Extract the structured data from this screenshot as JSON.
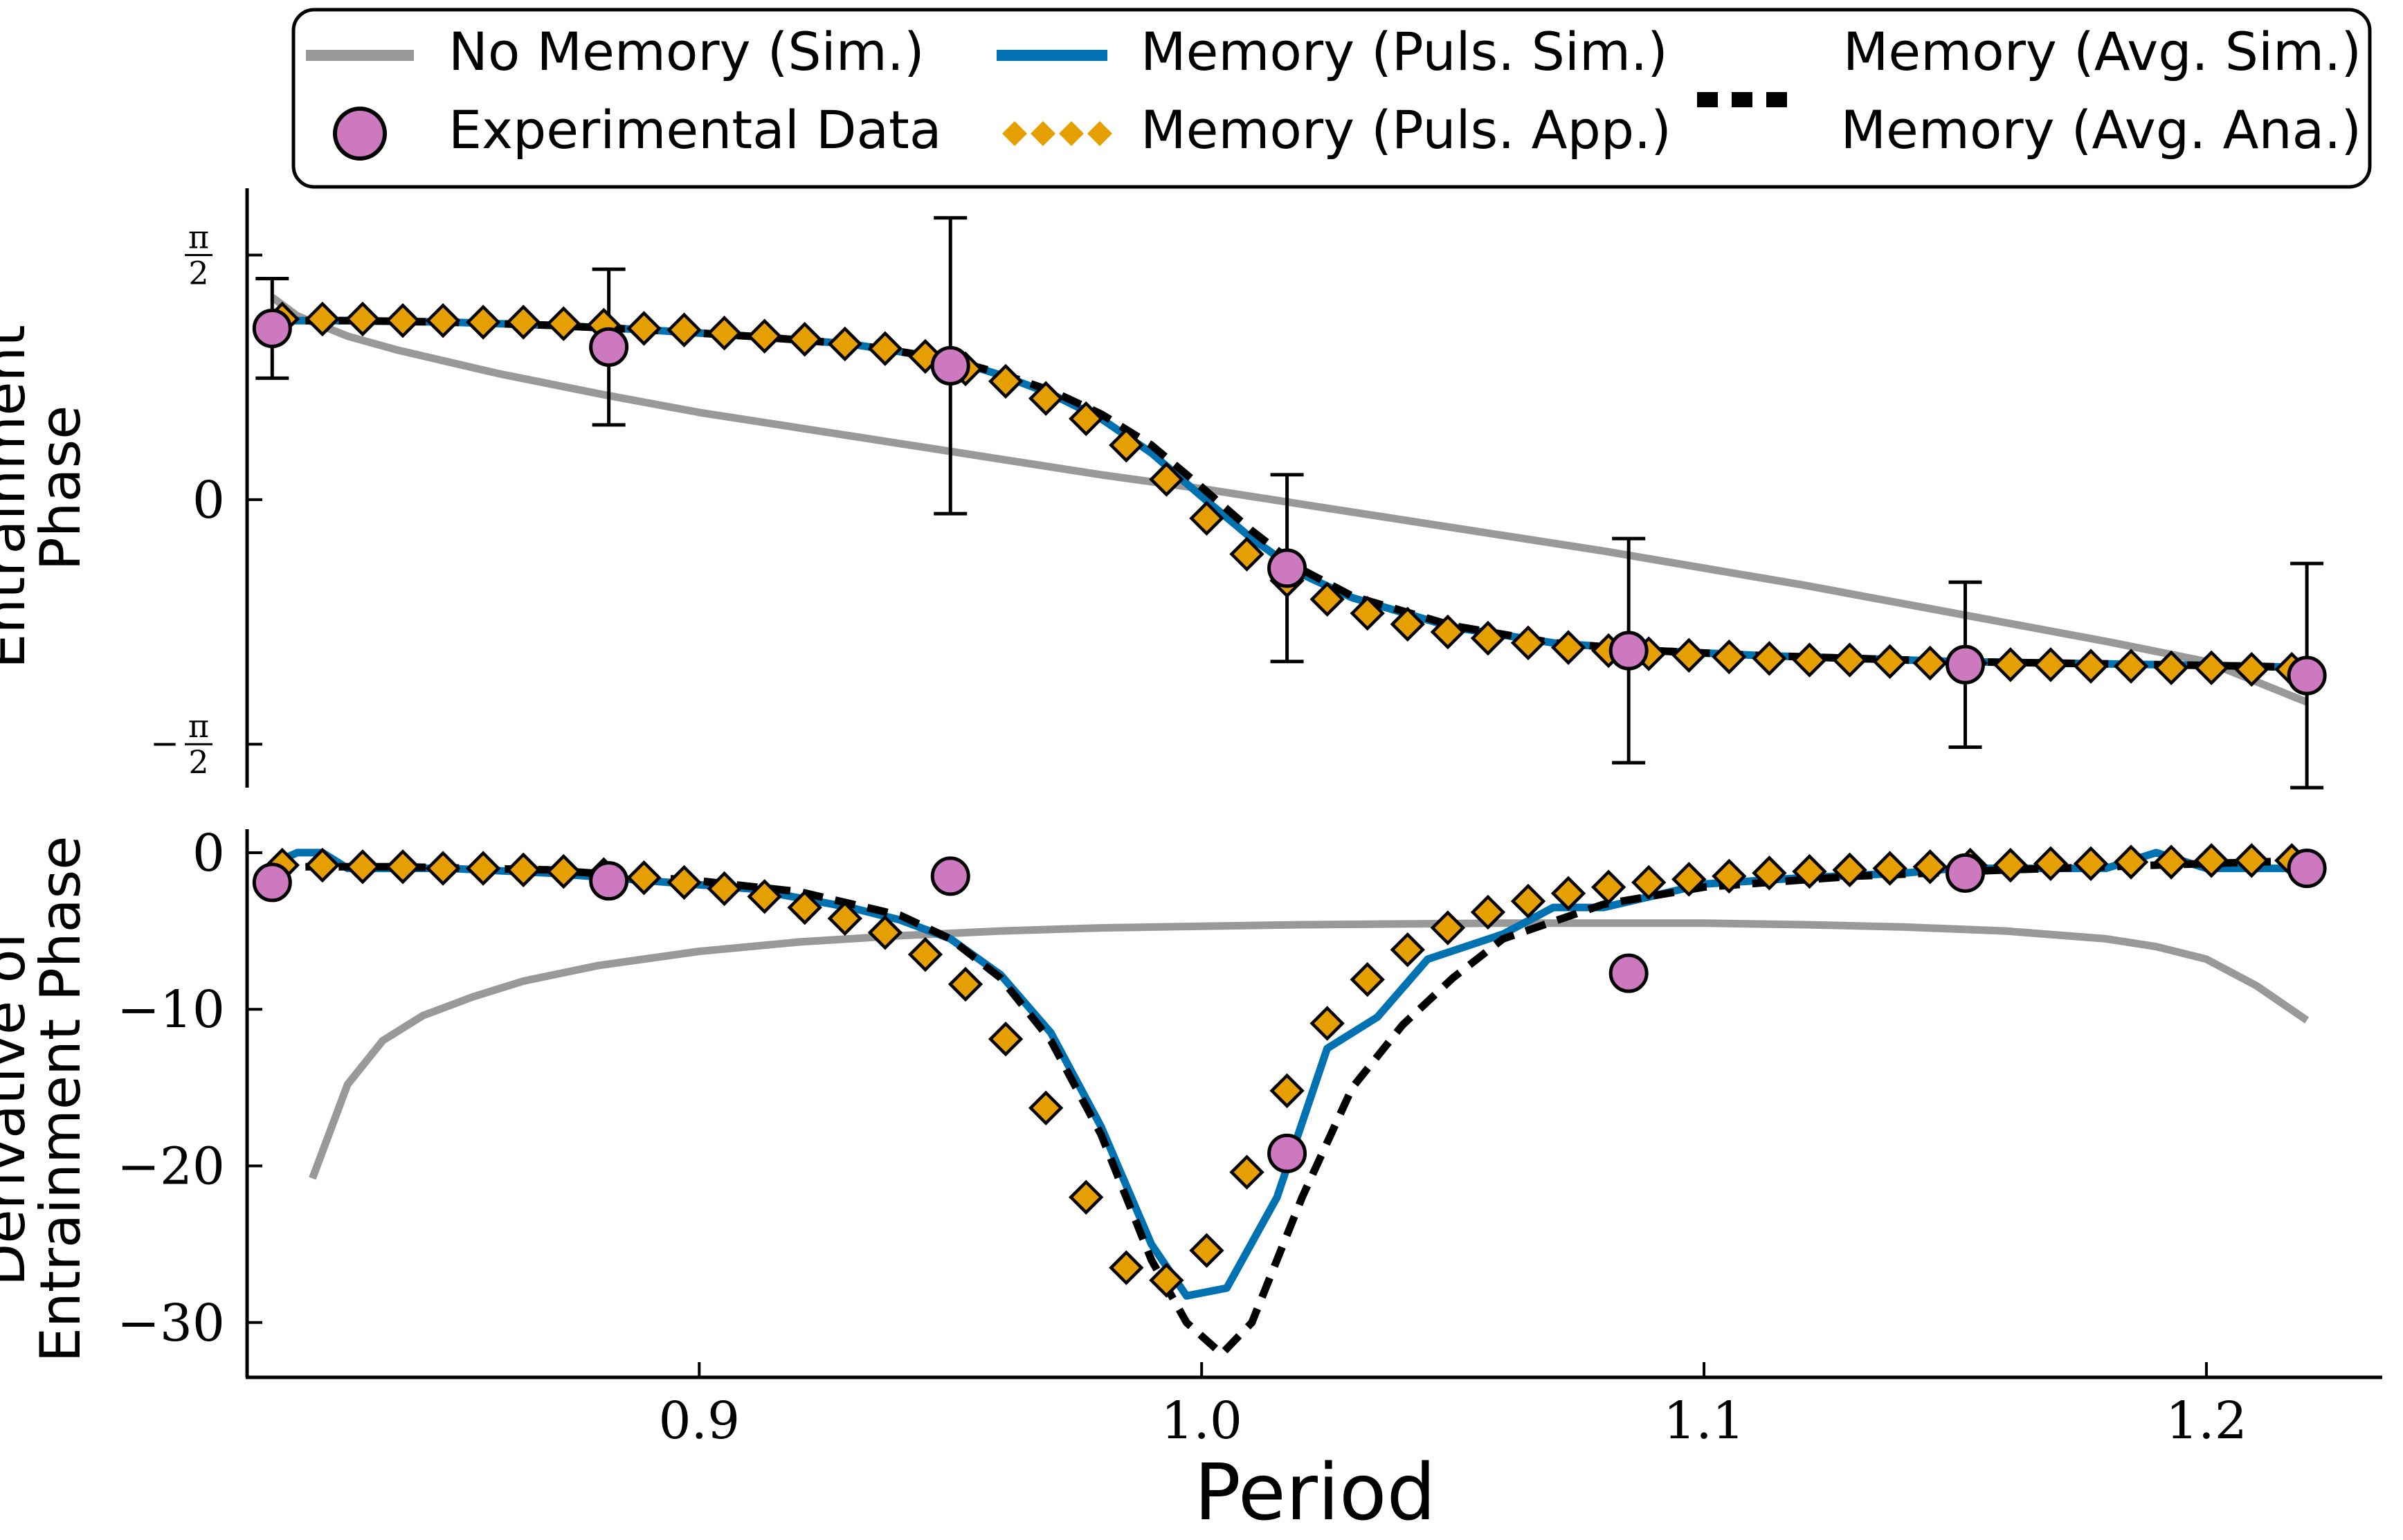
{
  "figure": {
    "xlabel": "Period"
  },
  "legend": {
    "entries": [
      {
        "label": "No Memory (Sim.)",
        "style": "line",
        "color": "#999999"
      },
      {
        "label": "Memory (Puls. Sim.)",
        "style": "line",
        "color": "#0072B2"
      },
      {
        "label": "Memory (Avg. Sim.)",
        "style": "dashed",
        "color": "#000000"
      },
      {
        "label": "Experimental Data",
        "style": "circle",
        "color": "#CC79C0"
      },
      {
        "label": "Memory (Puls. App.)",
        "style": "diamond",
        "color": "#E69F00"
      },
      {
        "label": "Memory (Avg. Ana.)",
        "style": "none",
        "color": "#000000"
      }
    ]
  },
  "colors": {
    "no_memory": "#999999",
    "puls_sim": "#0072B2",
    "avg": "#000000",
    "experimental": "#CC79C0",
    "puls_app": "#E69F00"
  },
  "chart_data": [
    {
      "type": "line",
      "panel": "top",
      "ylabel_lines": [
        "Entrainment",
        "Phase"
      ],
      "xlim": [
        0.81,
        1.235
      ],
      "ylim": [
        -1.85,
        2.0
      ],
      "yticks": [
        {
          "value": 1.5708,
          "num": "π",
          "den": "2",
          "sign": ""
        },
        {
          "value": 0,
          "label": "0"
        },
        {
          "value": -1.5708,
          "num": "π",
          "den": "2",
          "sign": "−"
        }
      ],
      "series": [
        {
          "name": "No Memory (Sim.)",
          "style": "no_memory",
          "x": [
            0.815,
            0.82,
            0.83,
            0.84,
            0.86,
            0.88,
            0.9,
            0.92,
            0.94,
            0.96,
            0.98,
            1.0,
            1.02,
            1.04,
            1.06,
            1.08,
            1.1,
            1.12,
            1.14,
            1.16,
            1.18,
            1.2,
            1.22
          ],
          "y": [
            1.3,
            1.18,
            1.05,
            0.96,
            0.81,
            0.68,
            0.56,
            0.46,
            0.36,
            0.26,
            0.16,
            0.07,
            -0.03,
            -0.13,
            -0.23,
            -0.33,
            -0.44,
            -0.55,
            -0.67,
            -0.79,
            -0.91,
            -1.04,
            -1.3
          ]
        },
        {
          "name": "Memory (Puls. Sim.)",
          "style": "puls_sim",
          "x": [
            0.815,
            0.83,
            0.85,
            0.87,
            0.89,
            0.91,
            0.93,
            0.95,
            0.96,
            0.97,
            0.98,
            0.99,
            1.0,
            1.01,
            1.02,
            1.03,
            1.05,
            1.07,
            1.09,
            1.11,
            1.13,
            1.15,
            1.17,
            1.19,
            1.21,
            1.22
          ],
          "y": [
            1.15,
            1.15,
            1.14,
            1.12,
            1.09,
            1.05,
            1.0,
            0.9,
            0.8,
            0.68,
            0.52,
            0.3,
            0.02,
            -0.25,
            -0.48,
            -0.63,
            -0.82,
            -0.92,
            -0.97,
            -1.0,
            -1.02,
            -1.04,
            -1.05,
            -1.06,
            -1.07,
            -1.08
          ]
        },
        {
          "name": "Memory (Avg. Sim.)",
          "style": "avg",
          "x": [
            0.815,
            0.83,
            0.85,
            0.87,
            0.89,
            0.91,
            0.93,
            0.95,
            0.96,
            0.97,
            0.98,
            0.99,
            1.0,
            1.01,
            1.02,
            1.03,
            1.05,
            1.07,
            1.09,
            1.11,
            1.13,
            1.15,
            1.17,
            1.19,
            1.21,
            1.22
          ],
          "y": [
            1.15,
            1.15,
            1.14,
            1.12,
            1.09,
            1.05,
            1.0,
            0.9,
            0.81,
            0.7,
            0.55,
            0.35,
            0.08,
            -0.2,
            -0.45,
            -0.62,
            -0.81,
            -0.92,
            -0.97,
            -1.0,
            -1.02,
            -1.04,
            -1.05,
            -1.06,
            -1.07,
            -1.08
          ]
        },
        {
          "name": "Memory (Puls. App.)",
          "style": "puls_app",
          "x": [
            0.817,
            0.825,
            0.833,
            0.841,
            0.849,
            0.857,
            0.865,
            0.873,
            0.881,
            0.889,
            0.897,
            0.905,
            0.913,
            0.921,
            0.929,
            0.937,
            0.945,
            0.953,
            0.961,
            0.969,
            0.977,
            0.985,
            0.993,
            1.001,
            1.009,
            1.017,
            1.025,
            1.033,
            1.041,
            1.049,
            1.057,
            1.065,
            1.073,
            1.081,
            1.089,
            1.097,
            1.105,
            1.113,
            1.121,
            1.129,
            1.137,
            1.145,
            1.153,
            1.161,
            1.169,
            1.177,
            1.185,
            1.193,
            1.201,
            1.209,
            1.217
          ],
          "y": [
            1.16,
            1.16,
            1.16,
            1.15,
            1.15,
            1.14,
            1.14,
            1.13,
            1.12,
            1.1,
            1.09,
            1.07,
            1.05,
            1.03,
            1.0,
            0.97,
            0.92,
            0.84,
            0.76,
            0.65,
            0.52,
            0.35,
            0.13,
            -0.12,
            -0.35,
            -0.52,
            -0.64,
            -0.73,
            -0.8,
            -0.85,
            -0.89,
            -0.92,
            -0.95,
            -0.97,
            -0.99,
            -1.0,
            -1.01,
            -1.02,
            -1.03,
            -1.03,
            -1.04,
            -1.05,
            -1.05,
            -1.06,
            -1.06,
            -1.07,
            -1.07,
            -1.08,
            -1.08,
            -1.09,
            -1.09
          ]
        },
        {
          "name": "Experimental Data",
          "style": "experimental",
          "x": [
            0.815,
            0.882,
            0.95,
            1.017,
            1.085,
            1.152,
            1.22
          ],
          "y": [
            1.1,
            0.98,
            0.86,
            -0.44,
            -0.97,
            -1.06,
            -1.13
          ],
          "err": [
            0.32,
            0.5,
            0.95,
            0.6,
            0.72,
            0.53,
            0.72
          ]
        }
      ]
    },
    {
      "type": "line",
      "panel": "bottom",
      "ylabel_lines": [
        "Derivative of",
        "Entrainment Phase"
      ],
      "xlim": [
        0.81,
        1.235
      ],
      "ylim": [
        -33.5,
        1.5
      ],
      "yticks": [
        {
          "value": 0,
          "label": "0"
        },
        {
          "value": -10,
          "label": "−10"
        },
        {
          "value": -20,
          "label": "−20"
        },
        {
          "value": -30,
          "label": "−30"
        }
      ],
      "xticks": [
        {
          "value": 0.9,
          "label": "0.9"
        },
        {
          "value": 1.0,
          "label": "1.0"
        },
        {
          "value": 1.1,
          "label": "1.1"
        },
        {
          "value": 1.2,
          "label": "1.2"
        }
      ],
      "series": [
        {
          "name": "No Memory (Sim.)",
          "style": "no_memory",
          "x": [
            0.823,
            0.83,
            0.837,
            0.845,
            0.855,
            0.865,
            0.88,
            0.9,
            0.92,
            0.94,
            0.96,
            0.98,
            1.0,
            1.02,
            1.04,
            1.06,
            1.08,
            1.1,
            1.12,
            1.14,
            1.16,
            1.18,
            1.19,
            1.2,
            1.21,
            1.22
          ],
          "y": [
            -20.8,
            -14.8,
            -12.0,
            -10.4,
            -9.2,
            -8.2,
            -7.2,
            -6.3,
            -5.7,
            -5.3,
            -5.0,
            -4.8,
            -4.7,
            -4.6,
            -4.55,
            -4.5,
            -4.5,
            -4.5,
            -4.6,
            -4.75,
            -5.0,
            -5.5,
            -6.0,
            -6.8,
            -8.5,
            -10.7
          ]
        },
        {
          "name": "Memory (Puls. Sim.)",
          "style": "puls_sim",
          "x": [
            0.815,
            0.82,
            0.825,
            0.83,
            0.85,
            0.87,
            0.89,
            0.91,
            0.93,
            0.94,
            0.95,
            0.96,
            0.97,
            0.98,
            0.99,
            0.997,
            1.005,
            1.015,
            1.025,
            1.035,
            1.045,
            1.06,
            1.07,
            1.08,
            1.1,
            1.12,
            1.14,
            1.15,
            1.17,
            1.18,
            1.19,
            1.2,
            1.21,
            1.22
          ],
          "y": [
            -0.7,
            0.0,
            0.0,
            -1.0,
            -1.0,
            -1.3,
            -1.8,
            -2.3,
            -3.5,
            -4.3,
            -5.5,
            -7.8,
            -11.5,
            -17.5,
            -25.0,
            -28.3,
            -27.8,
            -22.0,
            -12.5,
            -10.5,
            -6.8,
            -5.2,
            -3.5,
            -3.5,
            -2.0,
            -1.6,
            -1.3,
            -1.0,
            -1.0,
            -1.0,
            0.0,
            -1.0,
            -1.0,
            -1.0
          ]
        },
        {
          "name": "Memory (Avg. Sim.)",
          "style": "avg",
          "x": [
            0.815,
            0.84,
            0.87,
            0.9,
            0.92,
            0.94,
            0.95,
            0.96,
            0.97,
            0.98,
            0.99,
            0.997,
            1.004,
            1.01,
            1.02,
            1.03,
            1.04,
            1.05,
            1.06,
            1.08,
            1.1,
            1.13,
            1.16,
            1.19,
            1.22
          ],
          "y": [
            -0.9,
            -0.9,
            -1.1,
            -1.8,
            -2.5,
            -4.0,
            -5.5,
            -8.0,
            -12.0,
            -18.0,
            -26.0,
            -30.0,
            -32.0,
            -30.0,
            -22.0,
            -15.0,
            -11.0,
            -8.0,
            -5.5,
            -3.3,
            -2.2,
            -1.5,
            -1.1,
            -0.8,
            -0.5
          ]
        },
        {
          "name": "Memory (Puls. App.)",
          "style": "puls_app",
          "x": [
            0.817,
            0.825,
            0.833,
            0.841,
            0.849,
            0.857,
            0.865,
            0.873,
            0.881,
            0.889,
            0.897,
            0.905,
            0.913,
            0.921,
            0.929,
            0.937,
            0.945,
            0.953,
            0.961,
            0.969,
            0.977,
            0.985,
            0.993,
            1.001,
            1.009,
            1.017,
            1.025,
            1.033,
            1.041,
            1.049,
            1.057,
            1.065,
            1.073,
            1.081,
            1.089,
            1.097,
            1.105,
            1.113,
            1.121,
            1.129,
            1.137,
            1.145,
            1.153,
            1.161,
            1.169,
            1.177,
            1.185,
            1.193,
            1.201,
            1.209,
            1.217
          ],
          "y": [
            -0.8,
            -0.8,
            -0.9,
            -0.9,
            -1.0,
            -1.0,
            -1.1,
            -1.2,
            -1.4,
            -1.6,
            -1.9,
            -2.3,
            -2.8,
            -3.5,
            -4.2,
            -5.1,
            -6.5,
            -8.4,
            -11.9,
            -16.3,
            -22.0,
            -26.5,
            -27.3,
            -25.4,
            -20.4,
            -15.2,
            -10.9,
            -8.1,
            -6.2,
            -4.8,
            -3.8,
            -3.1,
            -2.6,
            -2.2,
            -1.9,
            -1.7,
            -1.5,
            -1.3,
            -1.2,
            -1.1,
            -1.0,
            -0.9,
            -0.8,
            -0.8,
            -0.7,
            -0.7,
            -0.6,
            -0.6,
            -0.5,
            -0.5,
            -0.5
          ]
        },
        {
          "name": "Experimental Data",
          "style": "experimental",
          "x": [
            0.815,
            0.882,
            0.95,
            1.017,
            1.085,
            1.152,
            1.22
          ],
          "y": [
            -1.9,
            -1.8,
            -1.5,
            -19.2,
            -7.7,
            -1.3,
            -1.0
          ]
        }
      ]
    }
  ]
}
